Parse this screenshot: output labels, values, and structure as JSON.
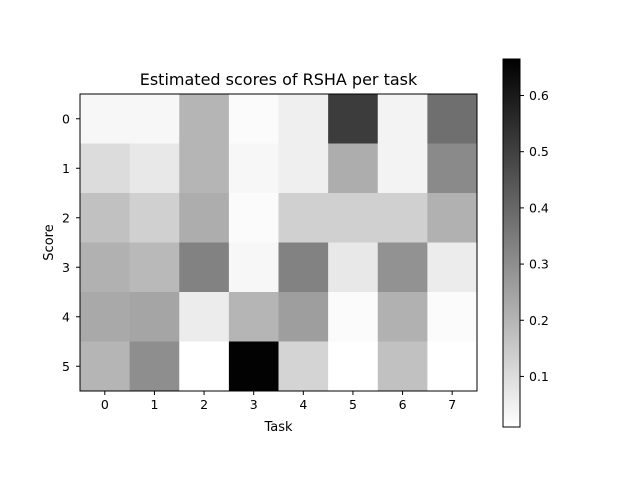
{
  "chart_data": {
    "type": "heatmap",
    "title": "Estimated scores of RSHA per task",
    "xlabel": "Task",
    "ylabel": "Score",
    "x_categories": [
      "0",
      "1",
      "2",
      "3",
      "4",
      "5",
      "6",
      "7"
    ],
    "y_categories": [
      "0",
      "1",
      "2",
      "3",
      "4",
      "5"
    ],
    "colormap": "Greys",
    "colorbar": {
      "range": [
        0.01,
        0.665
      ],
      "ticks": [
        "0.1",
        "0.2",
        "0.3",
        "0.4",
        "0.5",
        "0.6"
      ]
    },
    "values": [
      [
        0.03,
        0.03,
        0.2,
        0.02,
        0.05,
        0.51,
        0.04,
        0.38
      ],
      [
        0.1,
        0.07,
        0.2,
        0.03,
        0.05,
        0.22,
        0.04,
        0.31
      ],
      [
        0.17,
        0.13,
        0.22,
        0.02,
        0.13,
        0.13,
        0.13,
        0.21
      ],
      [
        0.21,
        0.19,
        0.33,
        0.03,
        0.33,
        0.07,
        0.29,
        0.06
      ],
      [
        0.23,
        0.24,
        0.06,
        0.2,
        0.26,
        0.02,
        0.21,
        0.02
      ],
      [
        0.2,
        0.3,
        0.01,
        0.66,
        0.12,
        0.01,
        0.17,
        0.01
      ]
    ]
  }
}
